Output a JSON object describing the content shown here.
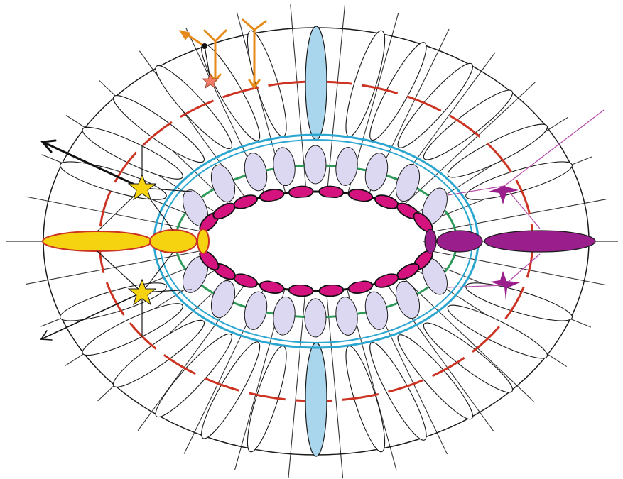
{
  "colors": {
    "outline": "#1a1a1a",
    "red_ring": "#cc3322",
    "cyan_ring": "#2aa6d0",
    "green_ring": "#2e9a5a",
    "magenta_cells": "#d4137f",
    "lavender_cells": "#ddd8f2",
    "light_blue_cells": "#a9d6ec",
    "yellow_cells": "#f5d311",
    "purple_cells": "#9a1e8c",
    "orange_arrows": "#e68a1a",
    "salmon_star": "#f07c66"
  },
  "icons": {
    "arrow_upper_left": "arrow-icon",
    "arrow_lower_left": "arrow-icon",
    "yellow_stars": "star-icon",
    "orange_arrows": "y-arrow-icon",
    "salmon_star": "star-icon",
    "purple_neurons": "tripolar-cell-icon"
  }
}
